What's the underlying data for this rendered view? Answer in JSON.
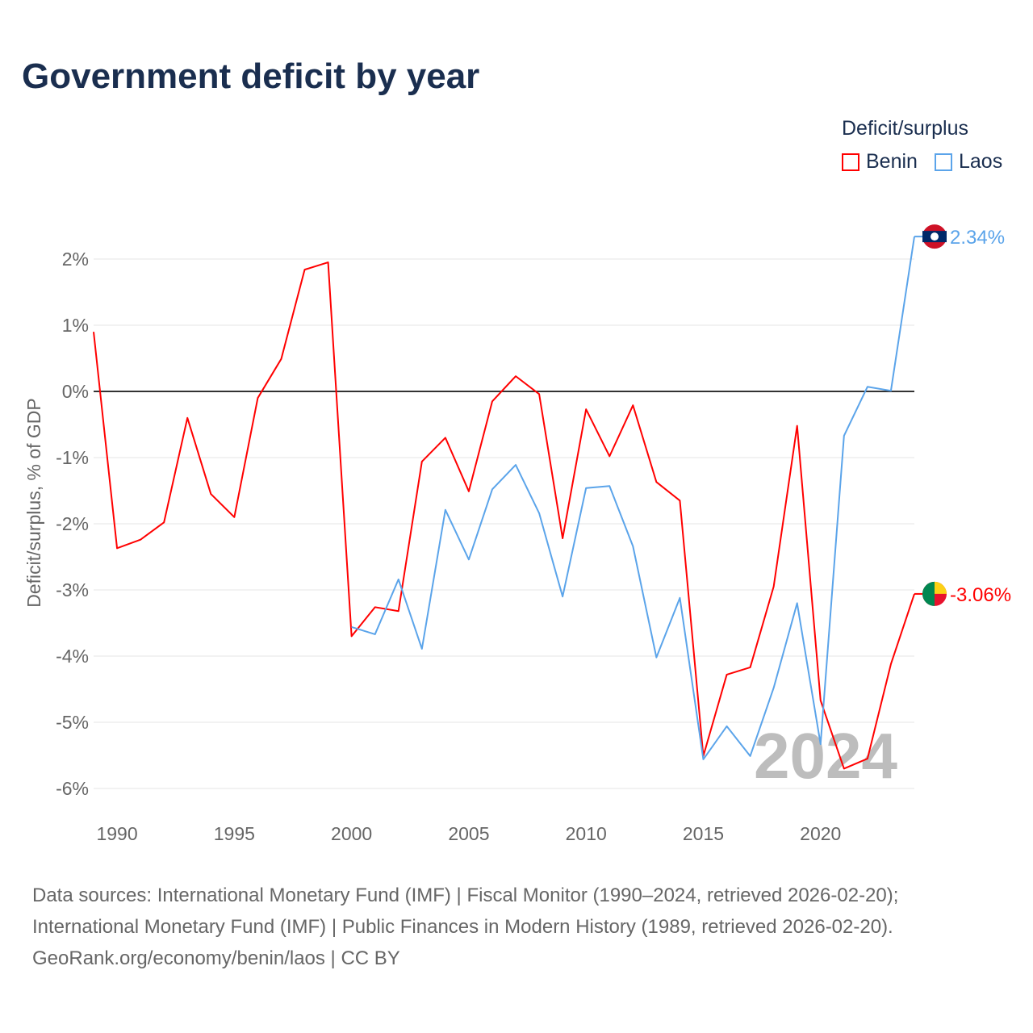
{
  "title": "Government deficit by year",
  "legend": {
    "title": "Deficit/surplus",
    "items": [
      {
        "name": "Benin",
        "color": "#ff0000"
      },
      {
        "name": "Laos",
        "color": "#5ba4ea"
      }
    ]
  },
  "watermark_year": "2024",
  "footer": [
    "Data sources: International Monetary Fund (IMF) | Fiscal Monitor (1990–2024, retrieved 2026-02-20);",
    "International Monetary Fund (IMF) | Public Finances in Modern History (1989, retrieved 2026-02-20).",
    "GeoRank.org/economy/benin/laos | CC BY"
  ],
  "chart_data": {
    "type": "line",
    "title": "Government deficit by year",
    "xlabel": "",
    "ylabel": "Deficit/surplus, % of GDP",
    "xlim": [
      1989,
      2024
    ],
    "ylim": [
      -6,
      2
    ],
    "xticks": [
      1990,
      1995,
      2000,
      2005,
      2010,
      2015,
      2020
    ],
    "yticks": [
      2,
      1,
      0,
      -1,
      -2,
      -3,
      -4,
      -5,
      -6
    ],
    "ytick_labels": [
      "2%",
      "1%",
      "0%",
      "-1%",
      "-2%",
      "-3%",
      "-4%",
      "-5%",
      "-6%"
    ],
    "grid": true,
    "legend_position": "top-right",
    "series": [
      {
        "name": "Benin",
        "color": "#ff0000",
        "end_label": "-3.06%",
        "start_year": 1989,
        "values": [
          0.9,
          -2.37,
          -2.24,
          -1.98,
          -0.4,
          -1.55,
          -1.9,
          -0.1,
          0.49,
          1.84,
          1.95,
          -3.7,
          -3.26,
          -3.32,
          -1.06,
          -0.7,
          -1.51,
          -0.15,
          0.23,
          -0.04,
          -2.22,
          -0.27,
          -0.98,
          -0.21,
          -1.37,
          -1.65,
          -5.51,
          -4.28,
          -4.17,
          -2.95,
          -0.52,
          -4.67,
          -5.7,
          -5.55,
          -4.12,
          -3.06
        ]
      },
      {
        "name": "Laos",
        "color": "#5ba4ea",
        "end_label": "2.34%",
        "start_year": 2000,
        "values": [
          -3.56,
          -3.67,
          -2.84,
          -3.89,
          -1.79,
          -2.54,
          -1.48,
          -1.11,
          -1.84,
          -3.1,
          -1.46,
          -1.43,
          -2.34,
          -4.02,
          -3.12,
          -5.56,
          -5.06,
          -5.51,
          -4.48,
          -3.2,
          -5.33,
          -0.67,
          0.07,
          0.01,
          2.34
        ]
      }
    ]
  }
}
